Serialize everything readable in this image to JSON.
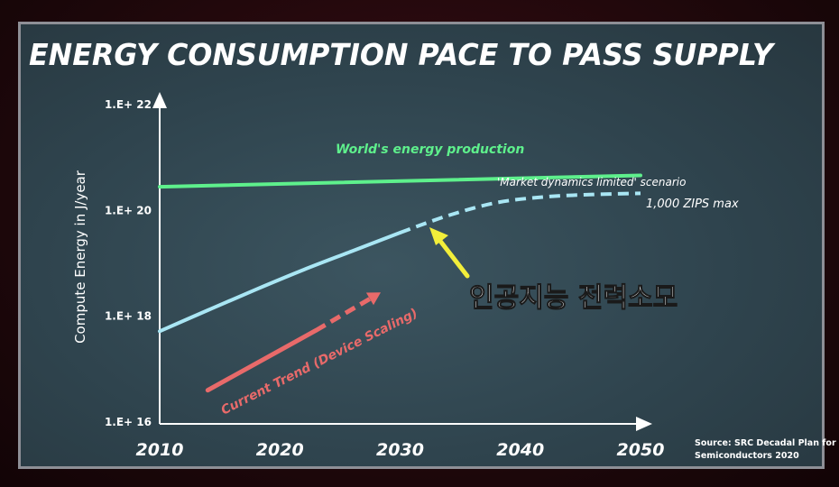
{
  "chart_data": {
    "type": "line",
    "title": "ENERGY CONSUMPTION PACE TO PASS SUPPLY",
    "ylabel": "Compute Energy in J/year",
    "xlabel": "",
    "x_ticks": [
      "2010",
      "2020",
      "2030",
      "2040",
      "2050"
    ],
    "y_ticks": [
      "1.E+ 16",
      "1.E+ 18",
      "1.E+ 20",
      "1.E+ 22"
    ],
    "y_scale": "log",
    "xlim": [
      2010,
      2050
    ],
    "ylim": [
      1e+16,
      1e+22
    ],
    "grid": false,
    "series": [
      {
        "name": "World's energy production",
        "color": "#5ef08c",
        "style": "solid",
        "points": [
          [
            2010,
            2.8e+20
          ],
          [
            2050,
            4.6e+20
          ]
        ]
      },
      {
        "name": "'Market dynamics limited' scenario",
        "color": "#a9e6f4",
        "style": "solid-then-dashed",
        "dash_from": 2030,
        "points": [
          [
            2010,
            5.2e+17
          ],
          [
            2014,
            1.3e+18
          ],
          [
            2018,
            3.2e+18
          ],
          [
            2022,
            7.6e+18
          ],
          [
            2026,
            1.7e+19
          ],
          [
            2030,
            3.8e+19
          ],
          [
            2034,
            8e+19
          ],
          [
            2038,
            1.4e+20
          ],
          [
            2042,
            1.8e+20
          ],
          [
            2046,
            2e+20
          ],
          [
            2050,
            2.1e+20
          ]
        ]
      },
      {
        "name": "Current Trend (Device Scaling)",
        "color": "#e86a6a",
        "style": "solid-then-dashed",
        "dash_from": 2023,
        "points": [
          [
            2014,
            4e+16
          ],
          [
            2023,
            5.4e+17
          ],
          [
            2028,
            2.5e+18
          ]
        ]
      }
    ],
    "annotations": {
      "energy_production": "World's energy production",
      "scenario": "'Market dynamics limited' scenario",
      "zips": "1,000 ZIPS max",
      "current_trend": "Current Trend (Device Scaling)",
      "korean_caption": "인공지능 전력소모",
      "source_line1": "Source: SRC Decadal Plan for",
      "source_line2": "Semiconductors 2020"
    },
    "arrow_color": "#f2ee3a"
  }
}
